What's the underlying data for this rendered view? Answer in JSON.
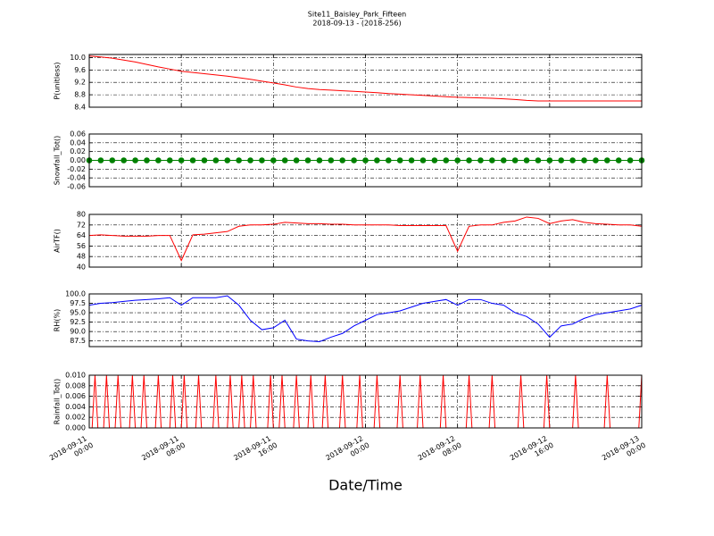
{
  "title": "Site11_Baisley_Park_Fifteen",
  "subtitle": "2018-09-13 - (2018-256)",
  "chart_data": [
    {
      "type": "line",
      "ylabel": "P(unitless)",
      "color": "#ff0000",
      "grid": true,
      "xlim": [
        "2018-09-11 00:00",
        "2018-09-13 00:00"
      ],
      "xticks": [
        "2018-09-11 00:00",
        "2018-09-11 08:00",
        "2018-09-11 16:00",
        "2018-09-12 00:00",
        "2018-09-12 08:00",
        "2018-09-12 16:00",
        "2018-09-13 00:00"
      ],
      "ylim": [
        8.4,
        10.1
      ],
      "yticks": [
        8.4,
        8.8,
        9.2,
        9.6,
        {
          "value": 10,
          "label": "10.0"
        }
      ],
      "x": [
        "2018-09-11 00:00",
        "2018-09-11 01:00",
        "2018-09-11 02:00",
        "2018-09-11 03:00",
        "2018-09-11 04:00",
        "2018-09-11 05:00",
        "2018-09-11 06:00",
        "2018-09-11 07:00",
        "2018-09-11 08:00",
        "2018-09-11 09:00",
        "2018-09-11 10:00",
        "2018-09-11 11:00",
        "2018-09-11 12:00",
        "2018-09-11 13:00",
        "2018-09-11 14:00",
        "2018-09-11 15:00",
        "2018-09-11 16:00",
        "2018-09-11 17:00",
        "2018-09-11 18:00",
        "2018-09-11 19:00",
        "2018-09-11 20:00",
        "2018-09-11 21:00",
        "2018-09-11 22:00",
        "2018-09-11 23:00",
        "2018-09-12 00:00",
        "2018-09-12 01:00",
        "2018-09-12 02:00",
        "2018-09-12 03:00",
        "2018-09-12 04:00",
        "2018-09-12 05:00",
        "2018-09-12 06:00",
        "2018-09-12 07:00",
        "2018-09-12 08:00",
        "2018-09-12 09:00",
        "2018-09-12 10:00",
        "2018-09-12 11:00",
        "2018-09-12 12:00",
        "2018-09-12 13:00",
        "2018-09-12 14:00",
        "2018-09-12 15:00",
        "2018-09-12 16:00",
        "2018-09-12 17:00",
        "2018-09-12 18:00",
        "2018-09-12 19:00",
        "2018-09-12 20:00",
        "2018-09-12 21:00",
        "2018-09-12 22:00",
        "2018-09-12 23:00",
        "2018-09-13 00:00"
      ],
      "values": [
        10.05,
        10.02,
        9.98,
        9.92,
        9.86,
        9.78,
        9.7,
        9.63,
        9.56,
        9.52,
        9.48,
        9.44,
        9.4,
        9.35,
        9.3,
        9.24,
        9.18,
        9.12,
        9.05,
        9.0,
        8.97,
        8.95,
        8.93,
        8.91,
        8.89,
        8.87,
        8.84,
        8.82,
        8.8,
        8.78,
        8.76,
        8.74,
        8.72,
        8.71,
        8.7,
        8.69,
        8.67,
        8.65,
        8.62,
        8.6,
        8.6,
        8.6,
        8.6,
        8.6,
        8.6,
        8.6,
        8.6,
        8.6,
        8.6
      ]
    },
    {
      "type": "line",
      "ylabel": "Snowfall_Tot()",
      "color": "#008000",
      "markers": true,
      "grid": true,
      "xlim": [
        "2018-09-11 00:00",
        "2018-09-13 00:00"
      ],
      "xticks": [
        "2018-09-11 00:00",
        "2018-09-11 08:00",
        "2018-09-11 16:00",
        "2018-09-12 00:00",
        "2018-09-12 08:00",
        "2018-09-12 16:00",
        "2018-09-13 00:00"
      ],
      "ylim": [
        -0.06,
        0.06
      ],
      "yticks": [
        -0.06,
        -0.04,
        -0.02,
        {
          "value": 0,
          "label": "0.00"
        },
        0.02,
        0.04,
        0.06
      ],
      "x": [
        "2018-09-11 00:00",
        "2018-09-11 01:00",
        "2018-09-11 02:00",
        "2018-09-11 03:00",
        "2018-09-11 04:00",
        "2018-09-11 05:00",
        "2018-09-11 06:00",
        "2018-09-11 07:00",
        "2018-09-11 08:00",
        "2018-09-11 09:00",
        "2018-09-11 10:00",
        "2018-09-11 11:00",
        "2018-09-11 12:00",
        "2018-09-11 13:00",
        "2018-09-11 14:00",
        "2018-09-11 15:00",
        "2018-09-11 16:00",
        "2018-09-11 17:00",
        "2018-09-11 18:00",
        "2018-09-11 19:00",
        "2018-09-11 20:00",
        "2018-09-11 21:00",
        "2018-09-11 22:00",
        "2018-09-11 23:00",
        "2018-09-12 00:00",
        "2018-09-12 01:00",
        "2018-09-12 02:00",
        "2018-09-12 03:00",
        "2018-09-12 04:00",
        "2018-09-12 05:00",
        "2018-09-12 06:00",
        "2018-09-12 07:00",
        "2018-09-12 08:00",
        "2018-09-12 09:00",
        "2018-09-12 10:00",
        "2018-09-12 11:00",
        "2018-09-12 12:00",
        "2018-09-12 13:00",
        "2018-09-12 14:00",
        "2018-09-12 15:00",
        "2018-09-12 16:00",
        "2018-09-12 17:00",
        "2018-09-12 18:00",
        "2018-09-12 19:00",
        "2018-09-12 20:00",
        "2018-09-12 21:00",
        "2018-09-12 22:00",
        "2018-09-12 23:00",
        "2018-09-13 00:00"
      ],
      "values": [
        0,
        0,
        0,
        0,
        0,
        0,
        0,
        0,
        0,
        0,
        0,
        0,
        0,
        0,
        0,
        0,
        0,
        0,
        0,
        0,
        0,
        0,
        0,
        0,
        0,
        0,
        0,
        0,
        0,
        0,
        0,
        0,
        0,
        0,
        0,
        0,
        0,
        0,
        0,
        0,
        0,
        0,
        0,
        0,
        0,
        0,
        0,
        0,
        0
      ]
    },
    {
      "type": "line",
      "ylabel": "AirTF()",
      "color": "#ff0000",
      "grid": true,
      "xlim": [
        "2018-09-11 00:00",
        "2018-09-13 00:00"
      ],
      "xticks": [
        "2018-09-11 00:00",
        "2018-09-11 08:00",
        "2018-09-11 16:00",
        "2018-09-12 00:00",
        "2018-09-12 08:00",
        "2018-09-12 16:00",
        "2018-09-13 00:00"
      ],
      "ylim": [
        40,
        80
      ],
      "yticks": [
        40,
        48,
        56,
        64,
        72,
        80
      ],
      "x": [
        "2018-09-11 00:00",
        "2018-09-11 01:00",
        "2018-09-11 02:00",
        "2018-09-11 03:00",
        "2018-09-11 04:00",
        "2018-09-11 05:00",
        "2018-09-11 06:00",
        "2018-09-11 07:00",
        "2018-09-11 08:00",
        "2018-09-11 09:00",
        "2018-09-11 10:00",
        "2018-09-11 11:00",
        "2018-09-11 12:00",
        "2018-09-11 13:00",
        "2018-09-11 14:00",
        "2018-09-11 15:00",
        "2018-09-11 16:00",
        "2018-09-11 17:00",
        "2018-09-11 18:00",
        "2018-09-11 19:00",
        "2018-09-11 20:00",
        "2018-09-11 21:00",
        "2018-09-11 22:00",
        "2018-09-11 23:00",
        "2018-09-12 00:00",
        "2018-09-12 01:00",
        "2018-09-12 02:00",
        "2018-09-12 03:00",
        "2018-09-12 04:00",
        "2018-09-12 05:00",
        "2018-09-12 06:00",
        "2018-09-12 07:00",
        "2018-09-12 08:00",
        "2018-09-12 09:00",
        "2018-09-12 10:00",
        "2018-09-12 11:00",
        "2018-09-12 12:00",
        "2018-09-12 13:00",
        "2018-09-12 14:00",
        "2018-09-12 15:00",
        "2018-09-12 16:00",
        "2018-09-12 17:00",
        "2018-09-12 18:00",
        "2018-09-12 19:00",
        "2018-09-12 20:00",
        "2018-09-12 21:00",
        "2018-09-12 22:00",
        "2018-09-12 23:00",
        "2018-09-13 00:00"
      ],
      "values": [
        64,
        64.5,
        64,
        63.5,
        63.5,
        63.5,
        64,
        64,
        45,
        64.5,
        65,
        66,
        67,
        71,
        72,
        72,
        72.5,
        74,
        73.5,
        73,
        73,
        72.5,
        72.5,
        72,
        72,
        72,
        72,
        71.5,
        71.5,
        71.5,
        71.5,
        71.5,
        52,
        71,
        72,
        72,
        74,
        75,
        78,
        77,
        73,
        75,
        76,
        74,
        73,
        72.5,
        72,
        72,
        71
      ]
    },
    {
      "type": "line",
      "ylabel": "RH(%)",
      "color": "#0000ff",
      "grid": true,
      "xlim": [
        "2018-09-11 00:00",
        "2018-09-13 00:00"
      ],
      "xticks": [
        "2018-09-11 00:00",
        "2018-09-11 08:00",
        "2018-09-11 16:00",
        "2018-09-12 00:00",
        "2018-09-12 08:00",
        "2018-09-12 16:00",
        "2018-09-13 00:00"
      ],
      "ylim": [
        86,
        100
      ],
      "yticks": [
        87.5,
        {
          "value": 90,
          "label": "90.0"
        },
        92.5,
        {
          "value": 95,
          "label": "95.0"
        },
        97.5,
        {
          "value": 100,
          "label": "100.0"
        }
      ],
      "x": [
        "2018-09-11 00:00",
        "2018-09-11 01:00",
        "2018-09-11 02:00",
        "2018-09-11 03:00",
        "2018-09-11 04:00",
        "2018-09-11 05:00",
        "2018-09-11 06:00",
        "2018-09-11 07:00",
        "2018-09-11 08:00",
        "2018-09-11 09:00",
        "2018-09-11 10:00",
        "2018-09-11 11:00",
        "2018-09-11 12:00",
        "2018-09-11 13:00",
        "2018-09-11 14:00",
        "2018-09-11 15:00",
        "2018-09-11 16:00",
        "2018-09-11 17:00",
        "2018-09-11 18:00",
        "2018-09-11 19:00",
        "2018-09-11 20:00",
        "2018-09-11 21:00",
        "2018-09-11 22:00",
        "2018-09-11 23:00",
        "2018-09-12 00:00",
        "2018-09-12 01:00",
        "2018-09-12 02:00",
        "2018-09-12 03:00",
        "2018-09-12 04:00",
        "2018-09-12 05:00",
        "2018-09-12 06:00",
        "2018-09-12 07:00",
        "2018-09-12 08:00",
        "2018-09-12 09:00",
        "2018-09-12 10:00",
        "2018-09-12 11:00",
        "2018-09-12 12:00",
        "2018-09-12 13:00",
        "2018-09-12 14:00",
        "2018-09-12 15:00",
        "2018-09-12 16:00",
        "2018-09-12 17:00",
        "2018-09-12 18:00",
        "2018-09-12 19:00",
        "2018-09-12 20:00",
        "2018-09-12 21:00",
        "2018-09-12 22:00",
        "2018-09-12 23:00",
        "2018-09-13 00:00"
      ],
      "values": [
        97,
        97.5,
        97.7,
        98,
        98.3,
        98.5,
        98.7,
        99,
        97,
        99,
        99,
        99,
        99.5,
        97,
        93,
        90.5,
        91,
        93,
        88,
        87.5,
        87.3,
        88.5,
        89.5,
        91.5,
        93,
        94.5,
        95,
        95.5,
        96.5,
        97.5,
        98,
        98.5,
        97,
        98.5,
        98.5,
        97.5,
        97,
        95,
        94,
        92,
        88.5,
        91.5,
        92,
        93.5,
        94.5,
        95,
        95.5,
        96,
        97
      ]
    },
    {
      "type": "line",
      "ylabel": "Rainfall_Tot()",
      "xlabel": "Date/Time",
      "color": "#ff0000",
      "grid": true,
      "xlim": [
        "2018-09-11 00:00",
        "2018-09-13 00:00"
      ],
      "xticks": [
        "2018-09-11 00:00",
        "2018-09-11 08:00",
        "2018-09-11 16:00",
        "2018-09-12 00:00",
        "2018-09-12 08:00",
        "2018-09-12 16:00",
        "2018-09-13 00:00"
      ],
      "ylim": [
        0,
        0.01
      ],
      "yticks": [
        {
          "value": 0,
          "label": "0.000"
        },
        0.002,
        0.004,
        0.006,
        0.008,
        {
          "value": 0.01,
          "label": "0.010"
        }
      ],
      "x": [
        "2018-09-11 00:00",
        "2018-09-11 00:15",
        "2018-09-11 00:30",
        "2018-09-11 00:45",
        "2018-09-11 01:15",
        "2018-09-11 01:30",
        "2018-09-11 01:45",
        "2018-09-11 02:15",
        "2018-09-11 02:30",
        "2018-09-11 02:45",
        "2018-09-11 03:30",
        "2018-09-11 03:45",
        "2018-09-11 04:00",
        "2018-09-11 04:30",
        "2018-09-11 04:45",
        "2018-09-11 05:00",
        "2018-09-11 05:45",
        "2018-09-11 06:00",
        "2018-09-11 06:15",
        "2018-09-11 07:00",
        "2018-09-11 07:15",
        "2018-09-11 07:30",
        "2018-09-11 08:00",
        "2018-09-11 08:15",
        "2018-09-11 08:30",
        "2018-09-11 09:15",
        "2018-09-11 09:30",
        "2018-09-11 09:45",
        "2018-09-11 10:45",
        "2018-09-11 11:00",
        "2018-09-11 11:15",
        "2018-09-11 12:00",
        "2018-09-11 12:15",
        "2018-09-11 12:30",
        "2018-09-11 13:00",
        "2018-09-11 13:15",
        "2018-09-11 13:30",
        "2018-09-11 14:00",
        "2018-09-11 14:15",
        "2018-09-11 14:30",
        "2018-09-11 15:30",
        "2018-09-11 15:45",
        "2018-09-11 16:00",
        "2018-09-11 16:30",
        "2018-09-11 16:45",
        "2018-09-11 17:00",
        "2018-09-11 17:45",
        "2018-09-11 18:00",
        "2018-09-11 18:15",
        "2018-09-11 19:00",
        "2018-09-11 19:15",
        "2018-09-11 19:30",
        "2018-09-11 20:15",
        "2018-09-11 20:30",
        "2018-09-11 20:45",
        "2018-09-11 21:45",
        "2018-09-11 22:00",
        "2018-09-11 22:15",
        "2018-09-11 23:15",
        "2018-09-11 23:30",
        "2018-09-11 23:45",
        "2018-09-12 00:45",
        "2018-09-12 01:00",
        "2018-09-12 01:15",
        "2018-09-12 02:45",
        "2018-09-12 03:00",
        "2018-09-12 03:15",
        "2018-09-12 04:30",
        "2018-09-12 04:45",
        "2018-09-12 05:00",
        "2018-09-12 06:30",
        "2018-09-12 06:45",
        "2018-09-12 07:00",
        "2018-09-12 08:45",
        "2018-09-12 09:00",
        "2018-09-12 09:15",
        "2018-09-12 10:45",
        "2018-09-12 11:00",
        "2018-09-12 11:15",
        "2018-09-12 13:15",
        "2018-09-12 13:30",
        "2018-09-12 13:45",
        "2018-09-12 15:30",
        "2018-09-12 15:45",
        "2018-09-12 16:00",
        "2018-09-12 18:00",
        "2018-09-12 18:15",
        "2018-09-12 18:30",
        "2018-09-12 20:45",
        "2018-09-12 21:00",
        "2018-09-12 21:15",
        "2018-09-12 23:45",
        "2018-09-13 00:00"
      ],
      "values": [
        0,
        0,
        0.01,
        0,
        0,
        0.01,
        0,
        0,
        0.01,
        0,
        0,
        0.01,
        0,
        0,
        0.01,
        0,
        0,
        0.01,
        0,
        0,
        0.01,
        0,
        0,
        0.01,
        0,
        0,
        0.01,
        0,
        0,
        0.01,
        0,
        0,
        0.01,
        0,
        0,
        0.01,
        0,
        0,
        0.01,
        0,
        0,
        0.01,
        0,
        0,
        0.01,
        0,
        0,
        0.01,
        0,
        0,
        0.01,
        0,
        0,
        0.01,
        0,
        0,
        0.01,
        0,
        0,
        0.01,
        0,
        0,
        0.01,
        0,
        0,
        0.01,
        0,
        0,
        0.01,
        0,
        0,
        0.01,
        0,
        0,
        0.01,
        0,
        0,
        0.01,
        0,
        0,
        0.01,
        0,
        0,
        0.01,
        0,
        0,
        0.01,
        0,
        0,
        0.01,
        0,
        0,
        0.01
      ]
    }
  ]
}
